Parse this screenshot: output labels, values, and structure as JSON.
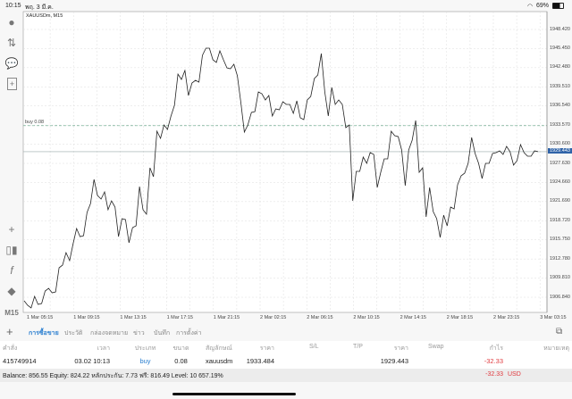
{
  "status_bar": {
    "time": "10:15",
    "date": "พฤ. 3 มี.ค.",
    "battery": "69%",
    "wifi_icon": "wifi-icon",
    "battery_icon": "battery-icon"
  },
  "chart": {
    "symbol_label": "XAUUSDm, M15",
    "timeframe": "M15",
    "buy_line_label": "buy 0.08",
    "current_price_label": "1929.443"
  },
  "chart_data": {
    "type": "line",
    "symbol": "XAUUSDm",
    "timeframe": "M15",
    "ylim": [
      1905.0,
      1950.0
    ],
    "y_ticks": [
      "1948.420",
      "1945.450",
      "1942.480",
      "1939.510",
      "1936.540",
      "1933.570",
      "1930.600",
      "1927.630",
      "1924.660",
      "1921.690",
      "1918.720",
      "1915.750",
      "1912.780",
      "1909.810",
      "1906.840"
    ],
    "x_ticks": [
      "1 Mar 05:15",
      "1 Mar 09:15",
      "1 Mar 13:15",
      "1 Mar 17:15",
      "1 Mar 21:15",
      "2 Mar 02:15",
      "2 Mar 06:15",
      "2 Mar 10:15",
      "2 Mar 14:15",
      "2 Mar 18:15",
      "2 Mar 23:15",
      "3 Mar 03:15"
    ],
    "buy_price": 1933.484,
    "current_price": 1929.443,
    "grid": true,
    "series": [
      {
        "values": [
          1906.29,
          1905.59,
          1905.18,
          1906.98,
          1905.73,
          1905.87,
          1907.81,
          1908.23,
          1907.53,
          1907.67,
          1911.41,
          1911.83,
          1913.77,
          1912.52,
          1915.16,
          1917.51,
          1916.26,
          1916.4,
          1920.01,
          1921.39,
          1925.14,
          1922.64,
          1922.09,
          1923.19,
          1920.42,
          1921.81,
          1920.84,
          1916.26,
          1919.04,
          1918.9,
          1915.29,
          1917.65,
          1917.93,
          1924.03,
          1920.42,
          1919.73,
          1926.94,
          1925.55,
          1932.62,
          1931.51,
          1933.59,
          1932.9,
          1934.98,
          1936.64,
          1941.49,
          1940.66,
          1942.04,
          1938.16,
          1940.1,
          1940.52,
          1940.24,
          1944.4,
          1945.51,
          1945.51,
          1943.71,
          1943.29,
          1945.09,
          1943.71,
          1942.46,
          1942.32,
          1943.01,
          1941.21,
          1937.05,
          1932.48,
          1933.59,
          1935.53,
          1935.67,
          1938.72,
          1938.44,
          1937.47,
          1938.16,
          1934.98,
          1936.08,
          1935.95,
          1937.19,
          1936.78,
          1936.78,
          1935.39,
          1937.33,
          1934.7,
          1934.42,
          1937.47,
          1938.02,
          1940.8,
          1941.35,
          1944.68,
          1938.72,
          1934.98,
          1939.41,
          1936.78,
          1937.47,
          1936.78,
          1933.17,
          1933.59,
          1921.81,
          1926.38,
          1926.38,
          1928.6,
          1927.63,
          1929.29,
          1929.02,
          1923.89,
          1926.24,
          1928.32,
          1928.32,
          1932.62,
          1931.93,
          1931.79,
          1929.71,
          1924.16,
          1929.71,
          1931.23,
          1934.28,
          1926.24,
          1926.94,
          1919.31,
          1923.89,
          1920.15,
          1919.04,
          1916.13,
          1919.59,
          1917.93,
          1920.84,
          1920.56,
          1924.3,
          1925.69,
          1926.11,
          1927.63,
          1931.65,
          1929.15,
          1927.63,
          1925.27,
          1927.63,
          1927.63,
          1929.15,
          1929.29,
          1929.57,
          1929.02,
          1930.26,
          1929.43,
          1927.35,
          1928.05,
          1930.54,
          1929.29,
          1928.74,
          1928.74,
          1929.57,
          1929.443
        ]
      }
    ]
  },
  "tabs": [
    "การซื้อขาย",
    "ประวัติ",
    "กล่องจดหมาย",
    "ข่าว",
    "บันทึก",
    "การตั้งค่า"
  ],
  "table": {
    "headers": [
      "คำสั่ง",
      "เวลา",
      "ประเภท",
      "ขนาด",
      "สัญลักษณ์",
      "ราคา",
      "S/L",
      "T/P",
      "ราคา",
      "Swap",
      "กำไร",
      "หมายเหตุ"
    ],
    "rows": [
      {
        "order": "415749914",
        "time": "03.02 10:13",
        "type": "buy",
        "volume": "0.08",
        "symbol": "xauusdm",
        "open_price": "1933.484",
        "sl": "",
        "tp": "",
        "current_price": "1929.443",
        "swap": "",
        "profit": "-32.33",
        "comment": ""
      }
    ]
  },
  "summary": {
    "text": "Balance: 856.55 Equity: 824.22 หลักประกัน: 7.73 ฟรี: 816.49 Level: 10 657.19%",
    "total_profit": "-32.33",
    "currency": "USD"
  },
  "colors": {
    "accent": "#2b7fd0",
    "loss": "#e0393e",
    "current_price_bg": "#2f63a8"
  }
}
